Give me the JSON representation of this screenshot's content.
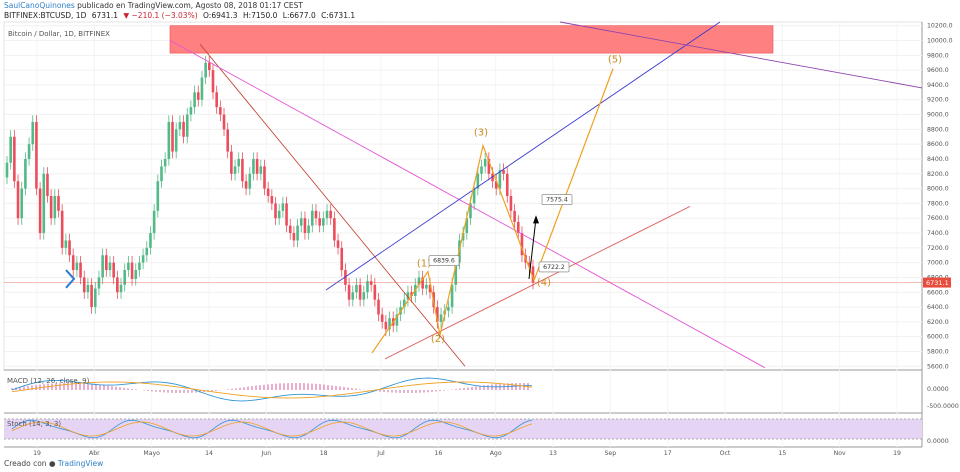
{
  "header": {
    "author": "SaulCanoQuinones",
    "published": " publicado en TradingView.com, Agosto 08, 2018 01:17 CEST",
    "symbol": "BITFINEX:BTCUSD, 1D",
    "last": "6731.1",
    "change": "▼ −210.1 (−3.03%)",
    "open": "O:6941.3",
    "high": "H:7150.0",
    "low": "L:6677.0",
    "close": "C:6731.1"
  },
  "chart_label": "Bitcoin / Dollar, 1D, BITFINEX",
  "macd_label": "MACD (12, 26, close, 9)",
  "stoch_label": "Stoch (14, 3, 3)",
  "footer": {
    "created_with": "Creado con",
    "brand": "TradingView"
  },
  "chart_data": {
    "type": "candlestick",
    "y_axis": [
      "10200.0",
      "10000.0",
      "9800.0",
      "9600.0",
      "9400.0",
      "9200.0",
      "9000.0",
      "8800.0",
      "8600.0",
      "8400.0",
      "8200.0",
      "8000.0",
      "7800.0",
      "7600.0",
      "7400.0",
      "7200.0",
      "7000.0",
      "6800.0",
      "6600.0",
      "6400.0",
      "6200.0",
      "6000.0",
      "5800.0",
      "5600.0"
    ],
    "ylim": [
      5550,
      10250
    ],
    "current_price": "6731.1",
    "x_axis": [
      "19",
      "Abr",
      "Mayo",
      "14",
      "Jun",
      "18",
      "Jul",
      "16",
      "Ago",
      "13",
      "Sep",
      "17",
      "Oct",
      "15",
      "Nov",
      "19"
    ],
    "closes": [
      8350,
      8700,
      8100,
      7600,
      8000,
      8400,
      8600,
      8900,
      8000,
      7400,
      8200,
      7900,
      7600,
      7900,
      7700,
      7200,
      7300,
      7100,
      6900,
      7000,
      6800,
      6600,
      6700,
      6400,
      6650,
      6800,
      7100,
      6900,
      7000,
      6800,
      6600,
      6700,
      6900,
      7000,
      6780,
      6900,
      7000,
      7100,
      7200,
      7400,
      7700,
      8100,
      8300,
      8400,
      8900,
      8500,
      8800,
      8900,
      8700,
      9000,
      9100,
      9300,
      9200,
      9500,
      9700,
      9600,
      9300,
      9100,
      9000,
      8800,
      8500,
      8200,
      8300,
      8400,
      8100,
      8000,
      8200,
      8400,
      8200,
      8300,
      8000,
      7900,
      7800,
      7600,
      7700,
      7800,
      7500,
      7400,
      7300,
      7500,
      7600,
      7400,
      7500,
      7700,
      7600,
      7500,
      7600,
      7700,
      7600,
      7300,
      7200,
      6900,
      6700,
      6500,
      6600,
      6700,
      6500,
      6600,
      6750,
      6700,
      6500,
      6300,
      6200,
      6100,
      6250,
      6150,
      6300,
      6400,
      6500,
      6600,
      6550,
      6700,
      6800,
      6650,
      6700,
      6600,
      6400,
      6200,
      6300,
      6350,
      6400,
      6700,
      7000,
      7300,
      7400,
      7600,
      7800,
      8000,
      8200,
      8300,
      8400,
      8200,
      8100,
      8000,
      8250,
      8200,
      7900,
      7700,
      7550,
      7400,
      7100,
      7000,
      6950,
      6731.1
    ],
    "wave_labels": [
      "(1)",
      "(2)",
      "(3)",
      "(4)",
      "(5)"
    ],
    "callouts": [
      "6839.6",
      "7575.4",
      "6722.2"
    ],
    "macd_axis": [
      "0.0000",
      "-500.0000"
    ],
    "stoch_axis": [
      "0.0000"
    ]
  }
}
